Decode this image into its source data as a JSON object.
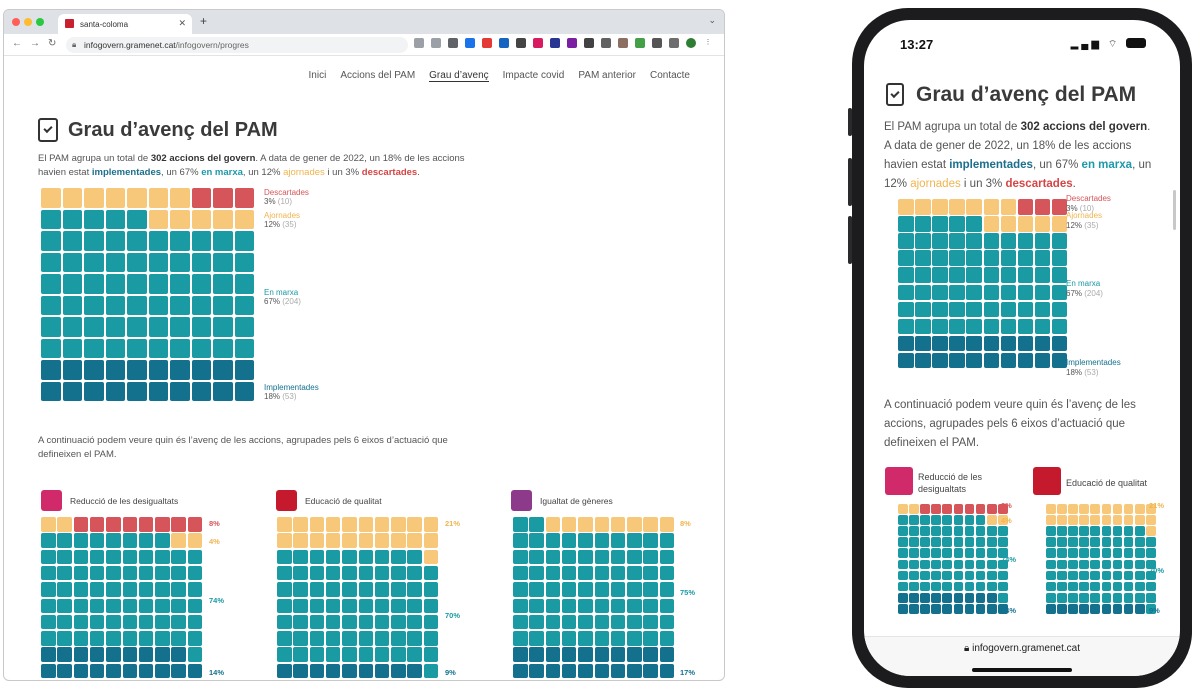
{
  "browser": {
    "tab_title": "santa-coloma",
    "url_domain": "infogovern.gramenet.cat",
    "url_path": "/infogovern/progres"
  },
  "nav": {
    "items": [
      "Inici",
      "Accions del PAM",
      "Grau d’avenç",
      "Impacte covid",
      "PAM anterior",
      "Contacte"
    ],
    "active": "Grau d’avenç"
  },
  "title": "Grau d’avenç del PAM",
  "intro": {
    "t1": "El PAM agrupa un total de ",
    "total": "302 accions del govern",
    "t2": ". A data de gener de 2022, un 18% de les accions havien estat ",
    "implementades": "implementades",
    "t3": ", un 67% ",
    "en_marxa": "en marxa",
    "t4": ", un 12% ",
    "ajornades": "ajornades",
    "t5": " i un 3% ",
    "descartades": "descartades",
    "t6": "."
  },
  "colors": {
    "descartades": "#d6555a",
    "ajornades": "#f7c87a",
    "en_marxa": "#1a9aa3",
    "implementades": "#13718e"
  },
  "chart_data": [
    {
      "type": "waffle",
      "categories": [
        {
          "name": "Descartades",
          "pct": "3%",
          "count": "(10)"
        },
        {
          "name": "Ajornades",
          "pct": "12%",
          "count": "(35)"
        },
        {
          "name": "En marxa",
          "pct": "67%",
          "count": "(204)"
        },
        {
          "name": "Implementades",
          "pct": "18%",
          "count": "(53)"
        }
      ]
    },
    {
      "type": "waffle",
      "title": "Reducció de les desigualtats",
      "segments": [
        {
          "label": "8%"
        },
        {
          "label": "4%"
        },
        {
          "label": "74%"
        },
        {
          "label": "14%"
        }
      ]
    },
    {
      "type": "waffle",
      "title": "Educació de qualitat",
      "segments": [
        {
          "label": "21%"
        },
        {
          "label": "70%"
        },
        {
          "label": "9%"
        }
      ]
    },
    {
      "type": "waffle",
      "title": "Igualtat de gèneres",
      "segments": [
        {
          "label": "8%"
        },
        {
          "label": "75%"
        },
        {
          "label": "17%"
        }
      ]
    }
  ],
  "para2": "A continuació podem veure quin és l’avenç de les accions, agrupades pels 6 eixos d’actuació que defineixen el PAM.",
  "mobile": {
    "time": "13:27",
    "url": "infogovern.gramenet.cat"
  }
}
